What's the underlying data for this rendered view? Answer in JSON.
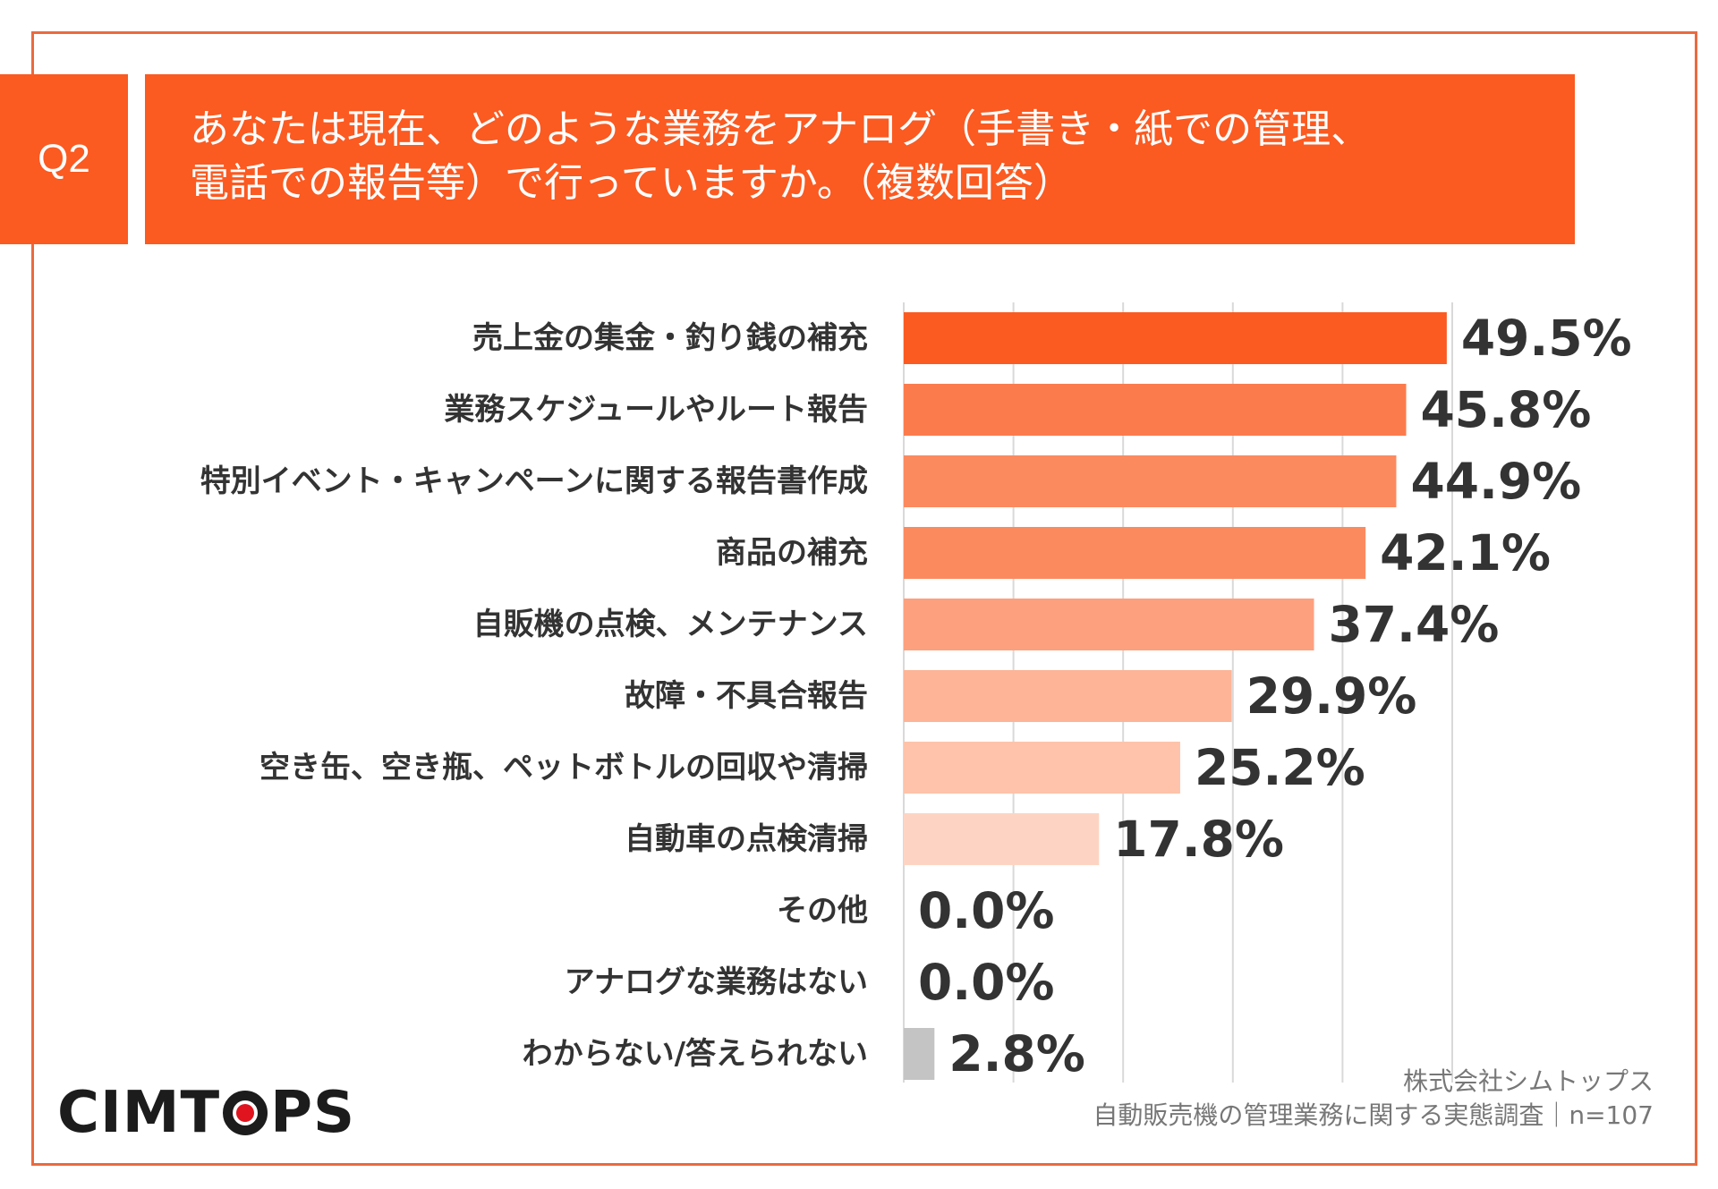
{
  "header": {
    "q_label": "Q2",
    "title_line1": "あなたは現在、どのような業務をアナログ（手書き・紙での管理、",
    "title_line2": "電話での報告等）で行っていますか。（複数回答）"
  },
  "colors": {
    "accent": "#fb5a21",
    "frame": "#ea6a3f",
    "gray_bar": "#c4c4c4",
    "text": "#333333"
  },
  "chart_data": {
    "type": "bar",
    "orientation": "horizontal",
    "title": "あなたは現在、どのような業務をアナログ（手書き・紙での管理、電話での報告等）で行っていますか。（複数回答）",
    "xlabel": "",
    "ylabel": "",
    "xlim": [
      0,
      50
    ],
    "grid": true,
    "unit": "%",
    "categories": [
      "売上金の集金・釣り銭の補充",
      "業務スケジュールやルート報告",
      "特別イベント・キャンペーンに関する報告書作成",
      "商品の補充",
      "自販機の点検、メンテナンス",
      "故障・不具合報告",
      "空き缶、空き瓶、ペットボトルの回収や清掃",
      "自動車の点検清掃",
      "その他",
      "アナログな業務はない",
      "わからない/答えられない"
    ],
    "values": [
      49.5,
      45.8,
      44.9,
      42.1,
      37.4,
      29.9,
      25.2,
      17.8,
      0.0,
      0.0,
      2.8
    ],
    "value_labels": [
      "49.5%",
      "45.8%",
      "44.9%",
      "42.1%",
      "37.4%",
      "29.9%",
      "25.2%",
      "17.8%",
      "0.0%",
      "0.0%",
      "2.8%"
    ],
    "bar_colors": [
      "#fb5a21",
      "#fc7b4c",
      "#fc8a5f",
      "#fc8a5f",
      "#fda07e",
      "#feb496",
      "#fec3aa",
      "#fdd4c3",
      "#fdd4c3",
      "#fdd4c3",
      "#c4c4c4"
    ]
  },
  "footer": {
    "logo_left": "CIMT",
    "logo_right": "PS",
    "company": "株式会社シムトップス",
    "survey": "自動販売機の管理業務に関する実態調査｜n=107"
  }
}
